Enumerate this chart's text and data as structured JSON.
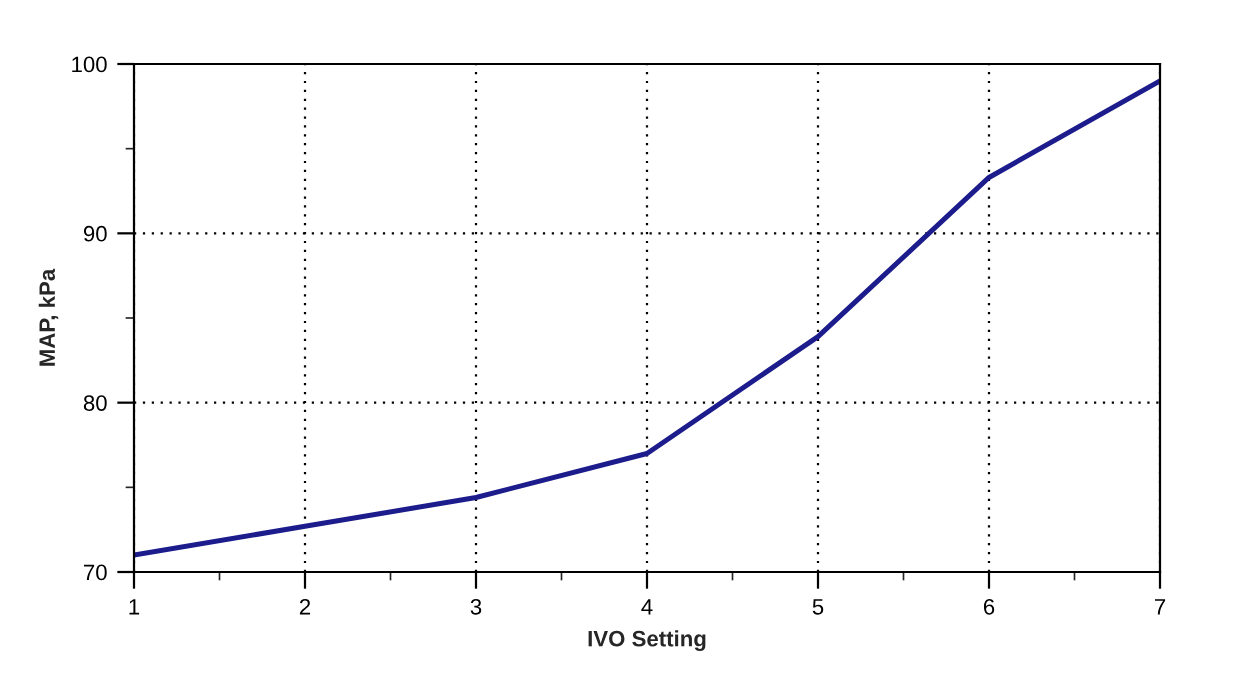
{
  "chart_data": {
    "type": "line",
    "xlabel": "IVO Setting",
    "ylabel": "MAP, kPa",
    "x": [
      1,
      2,
      3,
      4,
      5,
      6,
      7
    ],
    "series": [
      {
        "color": "#1c1c8c",
        "values": [
          71.0,
          72.7,
          74.4,
          77.0,
          83.9,
          93.3,
          99.0
        ]
      }
    ],
    "xlim": [
      1,
      7
    ],
    "ylim": [
      70,
      100
    ],
    "xticks": [
      1,
      {
        "value": 1.5,
        "label": null
      },
      2,
      {
        "value": 2.5,
        "label": null
      },
      3,
      {
        "value": 3.5,
        "label": null
      },
      4,
      {
        "value": 4.5,
        "label": null
      },
      5,
      {
        "value": 5.5,
        "label": null
      },
      6,
      {
        "value": 6.5,
        "label": null
      },
      7
    ],
    "yticks": [
      70,
      {
        "value": 75,
        "label": null
      },
      80,
      {
        "value": 85,
        "label": null
      },
      90,
      {
        "value": 95,
        "label": null
      },
      100
    ],
    "grid": true,
    "marker": "none",
    "line_style": "solid"
  }
}
